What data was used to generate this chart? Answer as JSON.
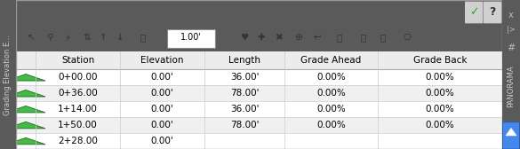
{
  "title": "Grading Elevation E...",
  "panorama_label": "PANORAMA",
  "dark_bg": "#5a5a5a",
  "toolbar_bg": "#d0cec8",
  "panel_bg": "#ffffff",
  "header_row": [
    "Station",
    "Elevation",
    "Length",
    "Grade Ahead",
    "Grade Back"
  ],
  "rows": [
    [
      "0+00.00",
      "0.00'",
      "36.00'",
      "0.00%",
      "0.00%"
    ],
    [
      "0+36.00",
      "0.00'",
      "78.00'",
      "0.00%",
      "0.00%"
    ],
    [
      "1+14.00",
      "0.00'",
      "36.00'",
      "0.00%",
      "0.00%"
    ],
    [
      "1+50.00",
      "0.00'",
      "78.00'",
      "0.00%",
      "0.00%"
    ],
    [
      "2+28.00",
      "0.00'",
      "",
      "",
      ""
    ]
  ],
  "row_colors": [
    "#ffffff",
    "#f0f0f0",
    "#ffffff",
    "#f0f0f0",
    "#ffffff"
  ],
  "figsize": [
    5.85,
    1.68
  ],
  "dpi": 100
}
